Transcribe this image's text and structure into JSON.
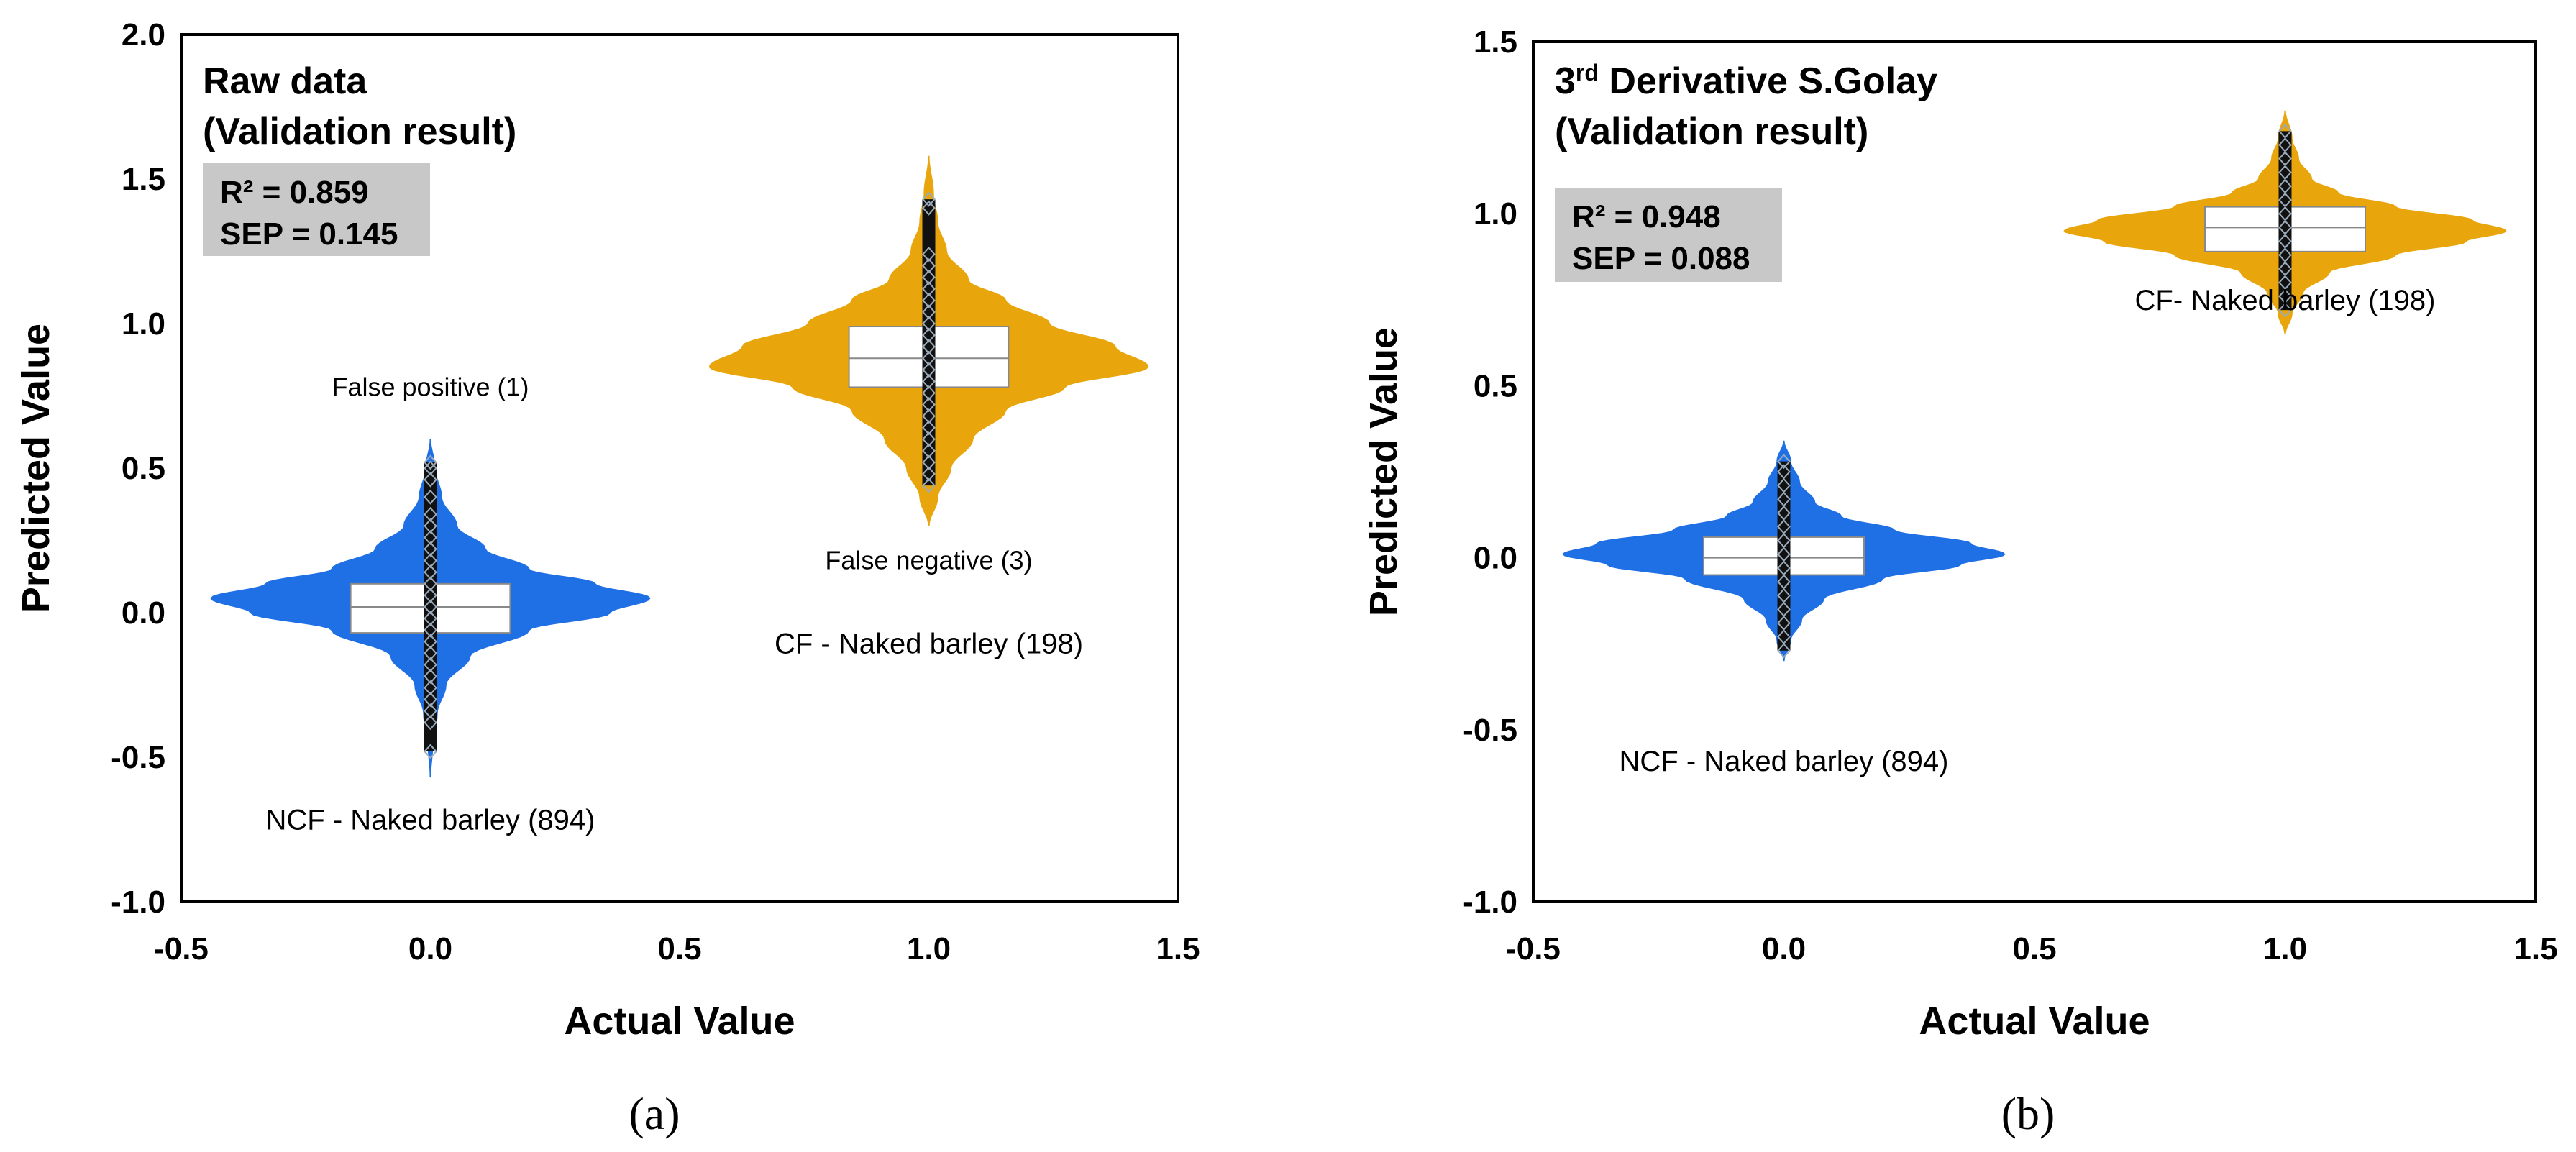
{
  "chart_data": [
    {
      "type": "violin",
      "panel_label": "(a)",
      "title_lines": [
        "Raw data",
        "(Validation result)"
      ],
      "title_sup": "",
      "xlabel": "Actual Value",
      "ylabel": "Predicted Value",
      "xlim": [
        -0.5,
        1.5
      ],
      "ylim": [
        -1.0,
        2.0
      ],
      "xticks": [
        "-0.5",
        "0.0",
        "0.5",
        "1.0",
        "1.5"
      ],
      "yticks": [
        "-1.0",
        "-0.5",
        "0.0",
        "0.5",
        "1.0",
        "1.5",
        "2.0"
      ],
      "stats": {
        "r2_label": "R² = 0.859",
        "sep_label": "SEP = 0.145"
      },
      "series": [
        {
          "name": "NCF - Naked barley (894)",
          "label": "NCF - Naked barley (894)",
          "color": "#1f6fe5",
          "x": 0.0,
          "halfwidth_max": 0.44,
          "profile": [
            [
              -0.57,
              0.0
            ],
            [
              -0.45,
              0.01
            ],
            [
              -0.35,
              0.03
            ],
            [
              -0.25,
              0.07
            ],
            [
              -0.15,
              0.18
            ],
            [
              -0.06,
              0.45
            ],
            [
              0.0,
              0.82
            ],
            [
              0.05,
              1.0
            ],
            [
              0.1,
              0.75
            ],
            [
              0.15,
              0.45
            ],
            [
              0.22,
              0.25
            ],
            [
              0.3,
              0.12
            ],
            [
              0.4,
              0.05
            ],
            [
              0.5,
              0.02
            ],
            [
              0.6,
              0.0
            ]
          ],
          "box": {
            "q1": -0.07,
            "median": 0.02,
            "q3": 0.1,
            "halfwidth": 0.16
          },
          "points": [
            -0.48,
            -0.38,
            -0.34,
            -0.3,
            -0.26,
            -0.22,
            -0.18,
            -0.14,
            -0.1,
            -0.06,
            -0.02,
            0.02,
            0.06,
            0.1,
            0.14,
            0.18,
            0.22,
            0.26,
            0.3,
            0.34,
            0.4,
            0.46,
            0.5,
            0.52
          ]
        },
        {
          "name": "CF - Naked barley (198)",
          "label": "CF - Naked barley (198)",
          "color": "#e8a50c",
          "x": 1.0,
          "halfwidth_max": 0.44,
          "profile": [
            [
              0.3,
              0.0
            ],
            [
              0.4,
              0.04
            ],
            [
              0.5,
              0.1
            ],
            [
              0.6,
              0.2
            ],
            [
              0.7,
              0.35
            ],
            [
              0.78,
              0.62
            ],
            [
              0.85,
              1.0
            ],
            [
              0.92,
              0.85
            ],
            [
              1.0,
              0.55
            ],
            [
              1.08,
              0.35
            ],
            [
              1.15,
              0.18
            ],
            [
              1.25,
              0.08
            ],
            [
              1.35,
              0.04
            ],
            [
              1.45,
              0.02
            ],
            [
              1.58,
              0.0
            ]
          ],
          "box": {
            "q1": 0.78,
            "median": 0.88,
            "q3": 0.99,
            "halfwidth": 0.16
          },
          "points": [
            0.44,
            0.48,
            0.52,
            0.56,
            0.6,
            0.64,
            0.68,
            0.72,
            0.76,
            0.8,
            0.84,
            0.88,
            0.92,
            0.96,
            1.0,
            1.04,
            1.08,
            1.12,
            1.16,
            1.2,
            1.24,
            1.4,
            1.43
          ]
        }
      ],
      "annotations": [
        {
          "text": "False positive (1)",
          "x": 0.0,
          "y": 0.75
        },
        {
          "text": "False negative (3)",
          "x": 1.0,
          "y": 0.15
        },
        {
          "text": "CF - Naked barley (198)",
          "x": 1.0,
          "y": -0.14
        },
        {
          "text": "NCF - Naked barley (894)",
          "x": 0.0,
          "y": -0.75
        }
      ]
    },
    {
      "type": "violin",
      "panel_label": "(b)",
      "title_lines": [
        "3rd Derivative S.Golay",
        "(Validation result)"
      ],
      "title_sup": "rd",
      "xlabel": "Actual Value",
      "ylabel": "Predicted Value",
      "xlim": [
        -0.5,
        1.5
      ],
      "ylim": [
        -1.0,
        1.5
      ],
      "xticks": [
        "-0.5",
        "0.0",
        "0.5",
        "1.0",
        "1.5"
      ],
      "yticks": [
        "-1.0",
        "-0.5",
        "0.0",
        "0.5",
        "1.0",
        "1.5"
      ],
      "stats": {
        "r2_label": "R² = 0.948",
        "sep_label": "SEP = 0.088"
      },
      "series": [
        {
          "name": "NCF - Naked barley (894)",
          "label": "NCF - Naked barley (894)",
          "color": "#1f6fe5",
          "x": 0.0,
          "halfwidth_max": 0.44,
          "profile": [
            [
              -0.3,
              0.0
            ],
            [
              -0.24,
              0.03
            ],
            [
              -0.18,
              0.08
            ],
            [
              -0.12,
              0.18
            ],
            [
              -0.06,
              0.45
            ],
            [
              -0.02,
              0.8
            ],
            [
              0.01,
              1.0
            ],
            [
              0.04,
              0.85
            ],
            [
              0.08,
              0.5
            ],
            [
              0.12,
              0.26
            ],
            [
              0.16,
              0.14
            ],
            [
              0.22,
              0.07
            ],
            [
              0.28,
              0.03
            ],
            [
              0.34,
              0.0
            ]
          ],
          "box": {
            "q1": -0.05,
            "median": 0.0,
            "q3": 0.06,
            "halfwidth": 0.16
          },
          "points": [
            -0.27,
            -0.23,
            -0.19,
            -0.15,
            -0.11,
            -0.07,
            -0.03,
            0.01,
            0.05,
            0.09,
            0.13,
            0.17,
            0.21,
            0.25,
            0.28
          ]
        },
        {
          "name": "CF - Naked barley (198)",
          "label": "CF - Naked barley (198)",
          "color": "#e8a50c",
          "x": 1.0,
          "halfwidth_max": 0.44,
          "profile": [
            [
              0.65,
              0.0
            ],
            [
              0.71,
              0.03
            ],
            [
              0.77,
              0.08
            ],
            [
              0.83,
              0.2
            ],
            [
              0.88,
              0.5
            ],
            [
              0.92,
              0.82
            ],
            [
              0.95,
              1.0
            ],
            [
              0.98,
              0.85
            ],
            [
              1.02,
              0.5
            ],
            [
              1.06,
              0.24
            ],
            [
              1.1,
              0.12
            ],
            [
              1.16,
              0.06
            ],
            [
              1.22,
              0.03
            ],
            [
              1.3,
              0.0
            ]
          ],
          "box": {
            "q1": 0.89,
            "median": 0.96,
            "q3": 1.02,
            "halfwidth": 0.16
          },
          "points": [
            0.72,
            0.76,
            0.8,
            0.84,
            0.88,
            0.92,
            0.96,
            1.0,
            1.04,
            1.08,
            1.12,
            1.16,
            1.2,
            1.24
          ]
        }
      ],
      "annotations": [
        {
          "text": "CF- Naked barley (198)",
          "x": 1.0,
          "y": 0.72
        },
        {
          "text": "NCF - Naked barley (894)",
          "x": 0.0,
          "y": -0.62
        }
      ]
    }
  ]
}
